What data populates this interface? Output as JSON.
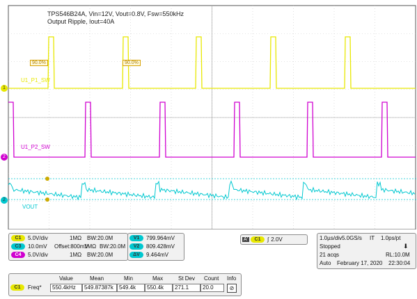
{
  "title_line1": "TPS546B24A, Vin=12V, Vout=0.8V, Fsw=550kHz",
  "title_line2": "Output Ripple, Iout=40A",
  "colors": {
    "ch1": "#e8e800",
    "ch2": "#d000d0",
    "ch3": "#00c8d0",
    "grid": "#bfbfbf",
    "border": "#555555"
  },
  "waveforms": {
    "ch1_label": "U1_P1_SW",
    "ch2_label": "U1_P2_SW",
    "ch3_label": "VOUT",
    "duty_labels": [
      "90.0%",
      "90.0%"
    ],
    "ch1_marker": "1",
    "ch2_marker": "2",
    "ch4_marker": "2"
  },
  "channels": [
    {
      "badge": "C1",
      "scale": "5.0V/div",
      "impedance": "1MΩ",
      "bw": "BW:20.0M",
      "color": "#e8e800"
    },
    {
      "badge": "C3",
      "scale": "10.0mV",
      "offset": "Offset:800mV",
      "impedance": "1MΩ",
      "bw": "BW:20.0M",
      "color": "#00c8d0"
    },
    {
      "badge": "C4",
      "scale": "5.0V/div",
      "impedance": "1MΩ",
      "bw": "BW:20.0M",
      "color": "#d000d0"
    }
  ],
  "cursors": [
    {
      "badge": "V1",
      "value": "799.964mV"
    },
    {
      "badge": "V2",
      "value": "809.428mV"
    },
    {
      "badge": "ΔV",
      "value": "9.464mV"
    }
  ],
  "trigger": {
    "mode": "A'",
    "source": "C1",
    "slope": "∫",
    "level": "2.0V"
  },
  "acquisition": {
    "timebase": "1.0µs/div",
    "sample_rate": "5.0GS/s",
    "it": "IT",
    "pt": "1.0ps/pt",
    "state": "Stopped",
    "acqs": "21 acqs",
    "rl": "RL:10.0M",
    "mode": "Auto",
    "date": "February 17, 2020",
    "time": "22:30:04"
  },
  "measurements": {
    "headers": [
      "Value",
      "Mean",
      "Min",
      "Max",
      "St Dev",
      "Count",
      "Info"
    ],
    "rows": [
      {
        "id": "C1",
        "name": "Freq*",
        "values": [
          "550.4kHz",
          "549.87387k",
          "549.4k",
          "550.4k",
          "271.1",
          "20.0"
        ]
      }
    ]
  }
}
